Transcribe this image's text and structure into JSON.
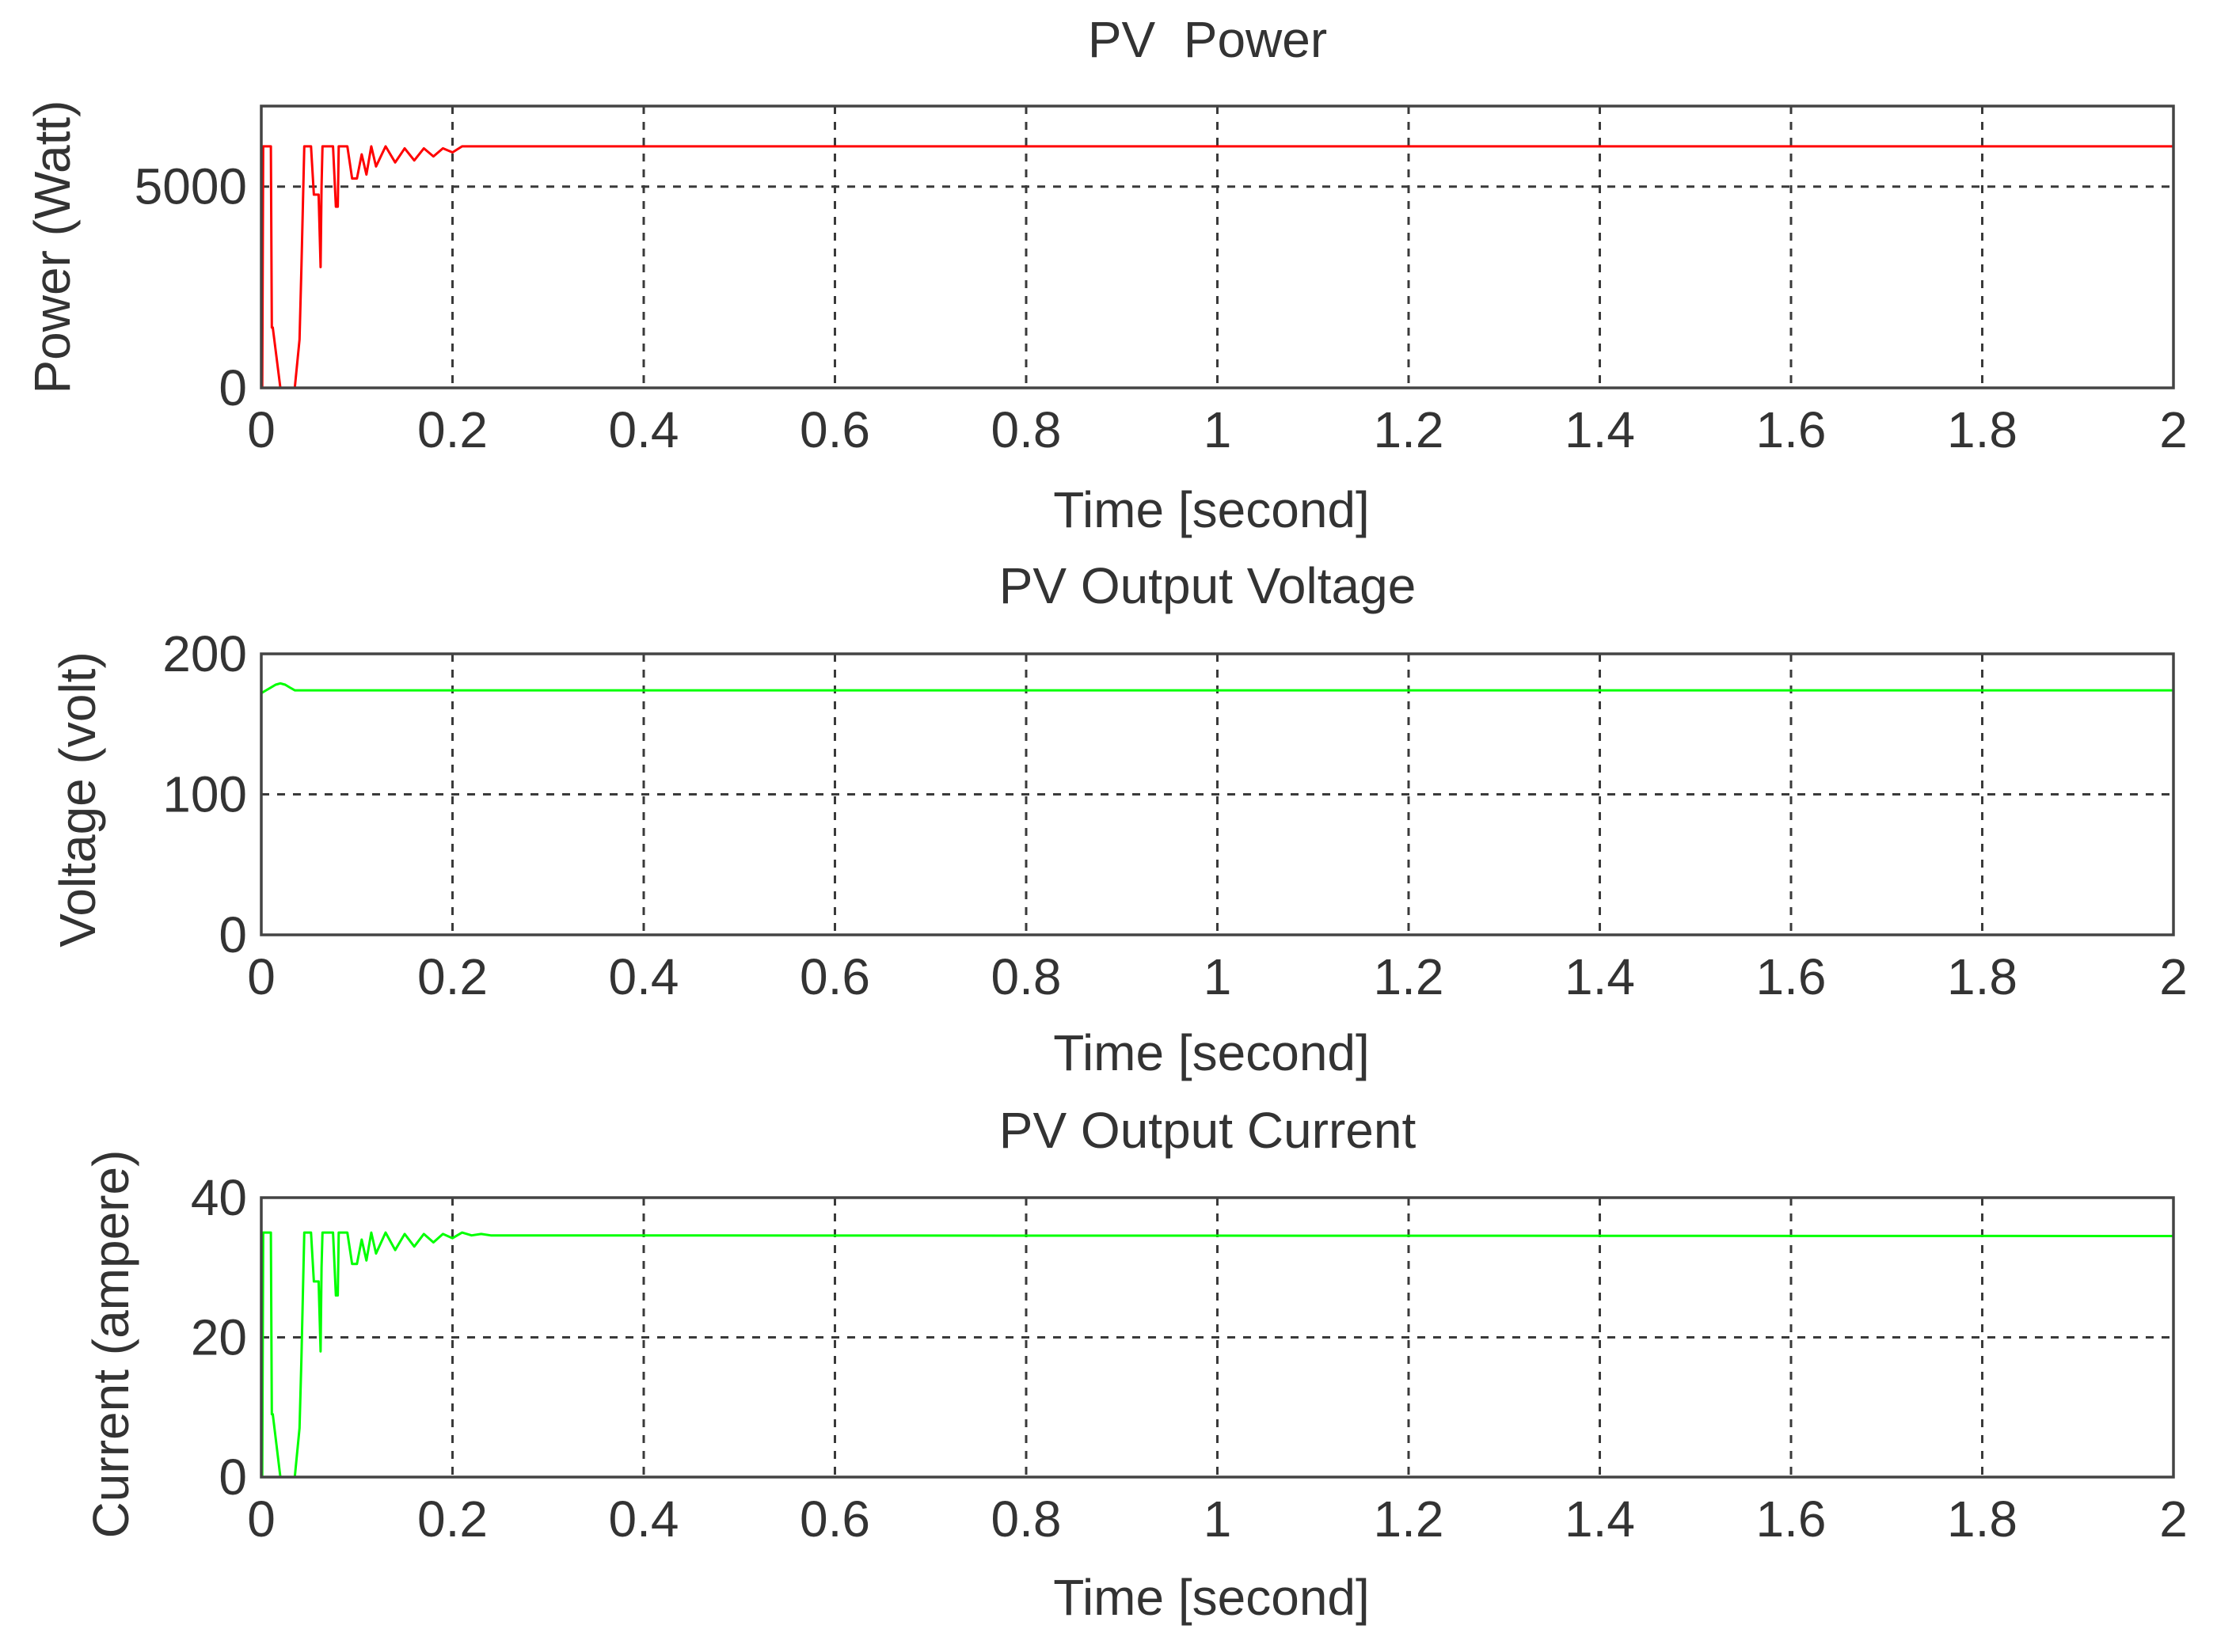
{
  "chart_data": [
    {
      "type": "line",
      "title": "PV  Power",
      "xlabel": "Time [second]",
      "ylabel": "Power (Watt)",
      "xlim": [
        0,
        2
      ],
      "ylim": [
        0,
        7000
      ],
      "xticks": [
        0,
        0.2,
        0.4,
        0.6,
        0.8,
        1,
        1.2,
        1.4,
        1.6,
        1.8,
        2
      ],
      "yticks": [
        0,
        5000
      ],
      "xtick_labels": [
        "0",
        "0.2",
        "0.4",
        "0.6",
        "0.8",
        "1",
        "1.2",
        "1.4",
        "1.6",
        "1.8",
        "2"
      ],
      "ytick_labels": [
        "0",
        "5000"
      ],
      "grid": true,
      "color": "#ff0000",
      "series": [
        {
          "x": [
            0,
            0.001,
            0.002,
            0.0025,
            0.01,
            0.011,
            0.012,
            0.02,
            0.025,
            0.03,
            0.035,
            0.04,
            0.042,
            0.045,
            0.048,
            0.052,
            0.055,
            0.06,
            0.062,
            0.063,
            0.064,
            0.065,
            0.066,
            0.07,
            0.075,
            0.078,
            0.08,
            0.081,
            0.082,
            0.083,
            0.09,
            0.095,
            0.1,
            0.105,
            0.11,
            0.115,
            0.12,
            0.13,
            0.14,
            0.15,
            0.16,
            0.17,
            0.18,
            0.19,
            0.2,
            0.21,
            0.22,
            2.0
          ],
          "y": [
            0,
            0,
            6000,
            6000,
            6000,
            1500,
            1500,
            0,
            0,
            0,
            0,
            1200,
            3000,
            6000,
            6000,
            6000,
            4800,
            4800,
            3000,
            5000,
            6000,
            6000,
            6000,
            6000,
            6000,
            4500,
            4500,
            6000,
            6000,
            6000,
            6000,
            5200,
            5200,
            5800,
            5300,
            6000,
            5500,
            6000,
            5600,
            5950,
            5650,
            5950,
            5750,
            5950,
            5850,
            6000,
            6000,
            6000
          ]
        }
      ]
    },
    {
      "type": "line",
      "title": "PV Output Voltage",
      "xlabel": "Time [second]",
      "ylabel": "Voltage (volt)",
      "xlim": [
        0,
        2
      ],
      "ylim": [
        0,
        200
      ],
      "xticks": [
        0,
        0.2,
        0.4,
        0.6,
        0.8,
        1,
        1.2,
        1.4,
        1.6,
        1.8,
        2
      ],
      "yticks": [
        0,
        100,
        200
      ],
      "xtick_labels": [
        "0",
        "0.2",
        "0.4",
        "0.6",
        "0.8",
        "1",
        "1.2",
        "1.4",
        "1.6",
        "1.8",
        "2"
      ],
      "ytick_labels": [
        "0",
        "100",
        "200"
      ],
      "grid": true,
      "color": "#00ff00",
      "series": [
        {
          "x": [
            0,
            0.005,
            0.01,
            0.015,
            0.02,
            0.025,
            0.03,
            0.035,
            2.0
          ],
          "y": [
            172,
            174,
            176,
            178,
            179,
            178,
            176,
            174,
            174
          ]
        }
      ]
    },
    {
      "type": "line",
      "title": "PV Output Current",
      "xlabel": "Time [second]",
      "ylabel": "Current (ampere)",
      "xlim": [
        0,
        2
      ],
      "ylim": [
        0,
        40
      ],
      "xticks": [
        0,
        0.2,
        0.4,
        0.6,
        0.8,
        1,
        1.2,
        1.4,
        1.6,
        1.8,
        2
      ],
      "yticks": [
        0,
        20,
        40
      ],
      "xtick_labels": [
        "0",
        "0.2",
        "0.4",
        "0.6",
        "0.8",
        "1",
        "1.2",
        "1.4",
        "1.6",
        "1.8",
        "2"
      ],
      "ytick_labels": [
        "0",
        "20",
        "40"
      ],
      "grid": true,
      "color": "#00ff00",
      "series": [
        {
          "x": [
            0,
            0.001,
            0.002,
            0.0025,
            0.01,
            0.011,
            0.012,
            0.02,
            0.025,
            0.03,
            0.035,
            0.04,
            0.042,
            0.045,
            0.048,
            0.052,
            0.055,
            0.06,
            0.062,
            0.063,
            0.064,
            0.065,
            0.066,
            0.07,
            0.075,
            0.078,
            0.08,
            0.081,
            0.082,
            0.083,
            0.09,
            0.095,
            0.1,
            0.105,
            0.11,
            0.115,
            0.12,
            0.13,
            0.14,
            0.15,
            0.16,
            0.17,
            0.18,
            0.19,
            0.2,
            0.21,
            0.22,
            0.23,
            0.24,
            2.0
          ],
          "y": [
            0,
            0,
            35,
            35,
            35,
            9,
            9,
            0,
            0,
            0,
            0,
            7,
            17,
            35,
            35,
            35,
            28,
            28,
            18,
            30,
            35,
            35,
            35,
            35,
            35,
            26,
            26,
            35,
            35,
            35,
            35,
            30.5,
            30.5,
            34,
            31,
            35,
            32,
            35,
            32.5,
            34.8,
            33,
            34.8,
            33.6,
            34.8,
            34.2,
            35,
            34.6,
            34.8,
            34.6,
            34.5
          ]
        }
      ]
    }
  ]
}
